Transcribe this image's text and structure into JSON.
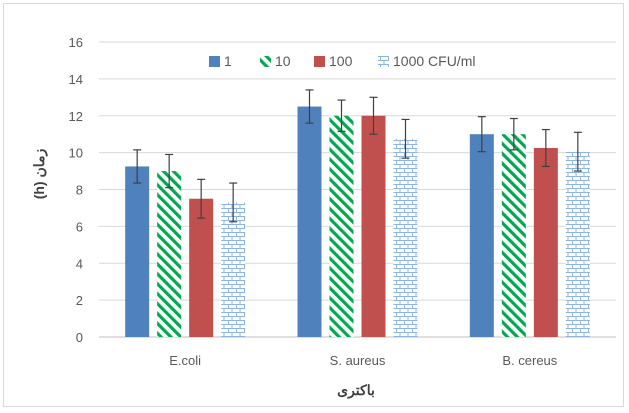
{
  "chart_data": {
    "type": "bar",
    "title": "",
    "xlabel": "باکتری",
    "ylabel": "زمان (h)",
    "ylim": [
      0,
      16
    ],
    "yticks": [
      0,
      2,
      4,
      6,
      8,
      10,
      12,
      14,
      16
    ],
    "grid": true,
    "legend_position": "top",
    "categories": [
      "E.coli",
      "S. aureus",
      "B. cereus"
    ],
    "series": [
      {
        "name": "1",
        "values": [
          9.25,
          12.5,
          11.0
        ],
        "errors": [
          0.9,
          0.9,
          0.95
        ],
        "color": "#4f81bd",
        "pattern": "solid"
      },
      {
        "name": "10",
        "values": [
          9.0,
          12.0,
          11.0
        ],
        "errors": [
          0.9,
          0.85,
          0.85
        ],
        "color": "#00a84f",
        "pattern": "diagonal-stripes"
      },
      {
        "name": "100",
        "values": [
          7.5,
          12.0,
          10.25
        ],
        "errors": [
          1.05,
          1.0,
          1.0
        ],
        "color": "#c0504d",
        "pattern": "solid"
      },
      {
        "name": "1000 CFU/ml",
        "values": [
          7.3,
          10.75,
          10.05
        ],
        "errors": [
          1.05,
          1.05,
          1.05
        ],
        "color": "#8eb4e3",
        "pattern": "brick"
      }
    ]
  }
}
